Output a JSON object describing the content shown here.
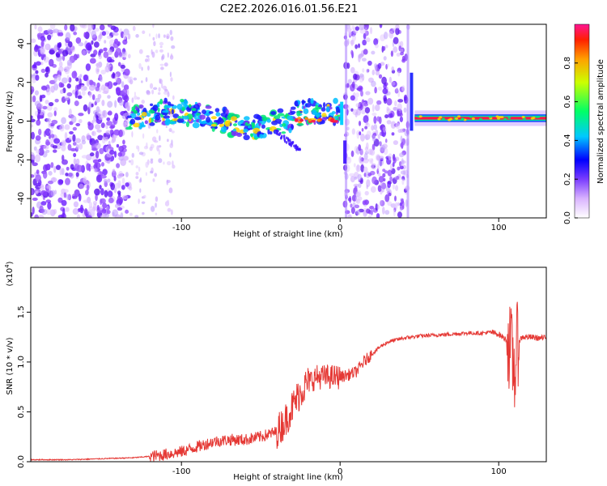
{
  "title": "C2E2.2026.016.01.56.E21",
  "spectrogram": {
    "xlabel": "Height of straight line (km)",
    "ylabel": "Frequency (Hz)",
    "xlim": [
      -195,
      130
    ],
    "ylim": [
      -50,
      50
    ],
    "xticks": [
      -100,
      0,
      100
    ],
    "yticks": [
      -40,
      -20,
      0,
      20,
      40
    ],
    "colorbar": {
      "label": "Normalized spectral amplitude",
      "range": [
        0,
        1
      ],
      "ticks": [
        "0.0",
        "0.2",
        "0.4",
        "0.6",
        "0.8"
      ]
    }
  },
  "chart_data": {
    "type": "line",
    "title": "C2E2.2026.016.01.56.E21",
    "xlabel": "Height of straight line (km)",
    "ylabel": "SNR (10 * v/v)",
    "y_multiplier": "(x10",
    "y_multiplier_exp": "4",
    "xlim": [
      -195,
      130
    ],
    "ylim": [
      0,
      1.95
    ],
    "xticks": [
      -100,
      0,
      100
    ],
    "yticks": [
      "0.0",
      "0.5",
      "1.0",
      "1.5"
    ],
    "color": "#e53935",
    "series": [
      {
        "name": "SNR",
        "x": [
          -195,
          -170,
          -150,
          -130,
          -115,
          -100,
          -90,
          -80,
          -70,
          -60,
          -50,
          -40,
          -35,
          -30,
          -25,
          -20,
          -15,
          -10,
          -5,
          0,
          5,
          10,
          15,
          20,
          25,
          30,
          35,
          40,
          50,
          60,
          70,
          80,
          90,
          95,
          100,
          105,
          108,
          110,
          112,
          115,
          120,
          125,
          130
        ],
        "values": [
          0.02,
          0.02,
          0.03,
          0.04,
          0.06,
          0.1,
          0.15,
          0.2,
          0.22,
          0.22,
          0.25,
          0.3,
          0.4,
          0.55,
          0.7,
          0.8,
          0.85,
          0.85,
          0.85,
          0.85,
          0.87,
          0.9,
          1.0,
          1.08,
          1.15,
          1.2,
          1.22,
          1.24,
          1.26,
          1.27,
          1.28,
          1.29,
          1.29,
          1.3,
          1.28,
          1.22,
          1.1,
          0.9,
          1.2,
          1.25,
          1.25,
          1.24,
          1.24
        ]
      }
    ]
  }
}
